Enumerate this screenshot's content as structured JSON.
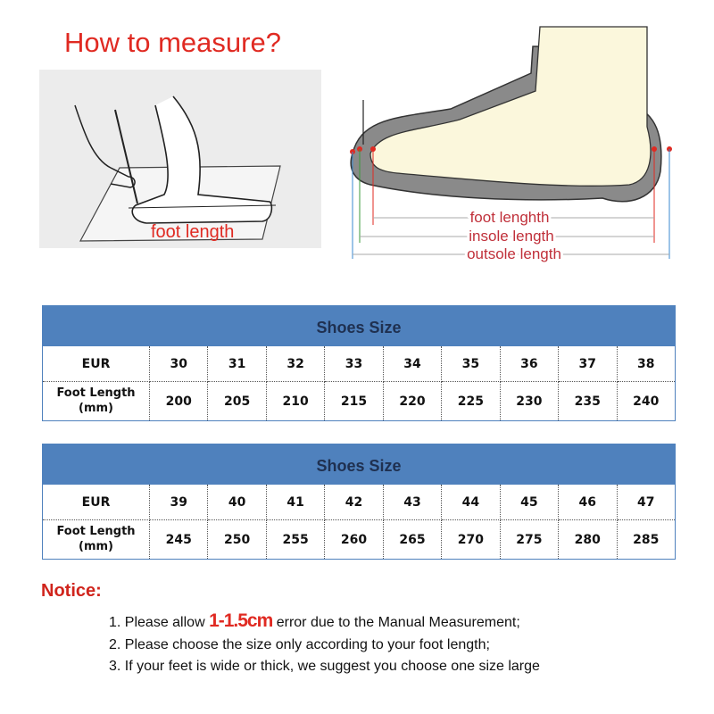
{
  "title": "How to measure?",
  "illustration_left": {
    "label": "foot length"
  },
  "illustration_right": {
    "labels": [
      "foot lenghth",
      "insole length",
      "outsole length"
    ]
  },
  "tables": [
    {
      "header": "Shoes Size",
      "row_labels": [
        "EUR",
        "Foot Length (mm)"
      ],
      "eur": [
        "30",
        "31",
        "32",
        "33",
        "34",
        "35",
        "36",
        "37",
        "38"
      ],
      "foot_length_mm": [
        "200",
        "205",
        "210",
        "215",
        "220",
        "225",
        "230",
        "235",
        "240"
      ]
    },
    {
      "header": "Shoes Size",
      "row_labels": [
        "EUR",
        "Foot Length (mm)"
      ],
      "eur": [
        "39",
        "40",
        "41",
        "42",
        "43",
        "44",
        "45",
        "46",
        "47"
      ],
      "foot_length_mm": [
        "245",
        "250",
        "255",
        "260",
        "265",
        "270",
        "275",
        "280",
        "285"
      ]
    }
  ],
  "notice": {
    "title": "Notice:",
    "items": [
      {
        "prefix": "1. Please allow ",
        "highlight": "1-1.5cm",
        "suffix": " error due to the Manual Measurement;"
      },
      {
        "text": "2. Please choose the size only according to your foot length;"
      },
      {
        "text": "3. If your feet is wide or thick, we suggest you choose one size large"
      }
    ]
  },
  "colors": {
    "title_red": "#e02a22",
    "table_header_blue": "#4f81bd",
    "notice_red": "#d0241c"
  }
}
